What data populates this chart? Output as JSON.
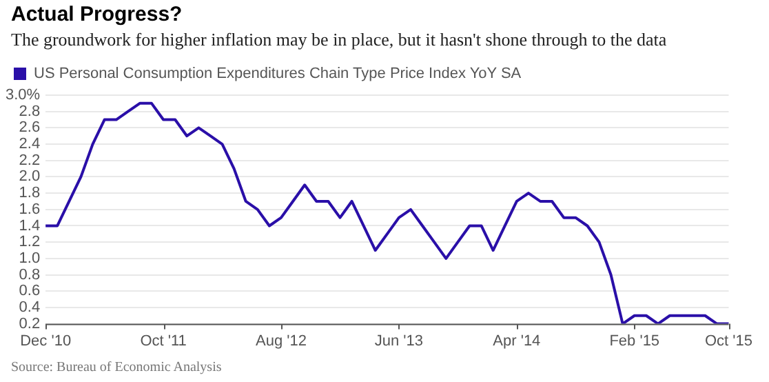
{
  "chart_data": {
    "type": "line",
    "title": "Actual Progress?",
    "subtitle": "The groundwork for higher inflation may be in place, but it hasn't shone through to the data",
    "categories": [
      "Dec '10",
      null,
      null,
      null,
      null,
      null,
      null,
      null,
      null,
      null,
      "Oct '11",
      null,
      null,
      null,
      null,
      null,
      null,
      null,
      null,
      null,
      "Aug '12",
      null,
      null,
      null,
      null,
      null,
      null,
      null,
      null,
      null,
      "Jun '13",
      null,
      null,
      null,
      null,
      null,
      null,
      null,
      null,
      null,
      "Apr '14",
      null,
      null,
      null,
      null,
      null,
      null,
      null,
      null,
      null,
      "Feb '15",
      null,
      null,
      null,
      null,
      null,
      null,
      null,
      "Oct '15"
    ],
    "series": [
      {
        "name": "US Personal Consumption Expenditures Chain Type Price Index YoY SA",
        "color": "#2a0fa8",
        "values": [
          1.4,
          1.4,
          1.7,
          2.0,
          2.4,
          2.7,
          2.7,
          2.8,
          2.9,
          2.9,
          2.7,
          2.7,
          2.5,
          2.6,
          2.5,
          2.4,
          2.1,
          1.7,
          1.6,
          1.4,
          1.5,
          1.7,
          1.9,
          1.7,
          1.7,
          1.5,
          1.7,
          1.4,
          1.1,
          1.3,
          1.5,
          1.6,
          1.4,
          1.2,
          1.0,
          1.2,
          1.4,
          1.4,
          1.1,
          1.4,
          1.7,
          1.8,
          1.7,
          1.7,
          1.5,
          1.5,
          1.4,
          1.2,
          0.8,
          0.2,
          0.3,
          0.3,
          0.2,
          0.3,
          0.3,
          0.3,
          0.3,
          0.2,
          0.2
        ]
      }
    ],
    "ylim": [
      0.2,
      3.0
    ],
    "yticks": [
      {
        "value": 0.2,
        "label": "0.2"
      },
      {
        "value": 0.4,
        "label": "0.4"
      },
      {
        "value": 0.6,
        "label": "0.6"
      },
      {
        "value": 0.8,
        "label": "0.8"
      },
      {
        "value": 1.0,
        "label": "1.0"
      },
      {
        "value": 1.2,
        "label": "1.2"
      },
      {
        "value": 1.4,
        "label": "1.4"
      },
      {
        "value": 1.6,
        "label": "1.6"
      },
      {
        "value": 1.8,
        "label": "1.8"
      },
      {
        "value": 2.0,
        "label": "2.0"
      },
      {
        "value": 2.2,
        "label": "2.2"
      },
      {
        "value": 2.4,
        "label": "2.4"
      },
      {
        "value": 2.6,
        "label": "2.6"
      },
      {
        "value": 2.8,
        "label": "2.8"
      },
      {
        "value": 3.0,
        "label": "3.0%"
      }
    ],
    "grid": "y",
    "legend": "top left",
    "marker": "none",
    "line_style": "solid",
    "annotations": [
      "Source: Bureau of Economic Analysis"
    ]
  }
}
